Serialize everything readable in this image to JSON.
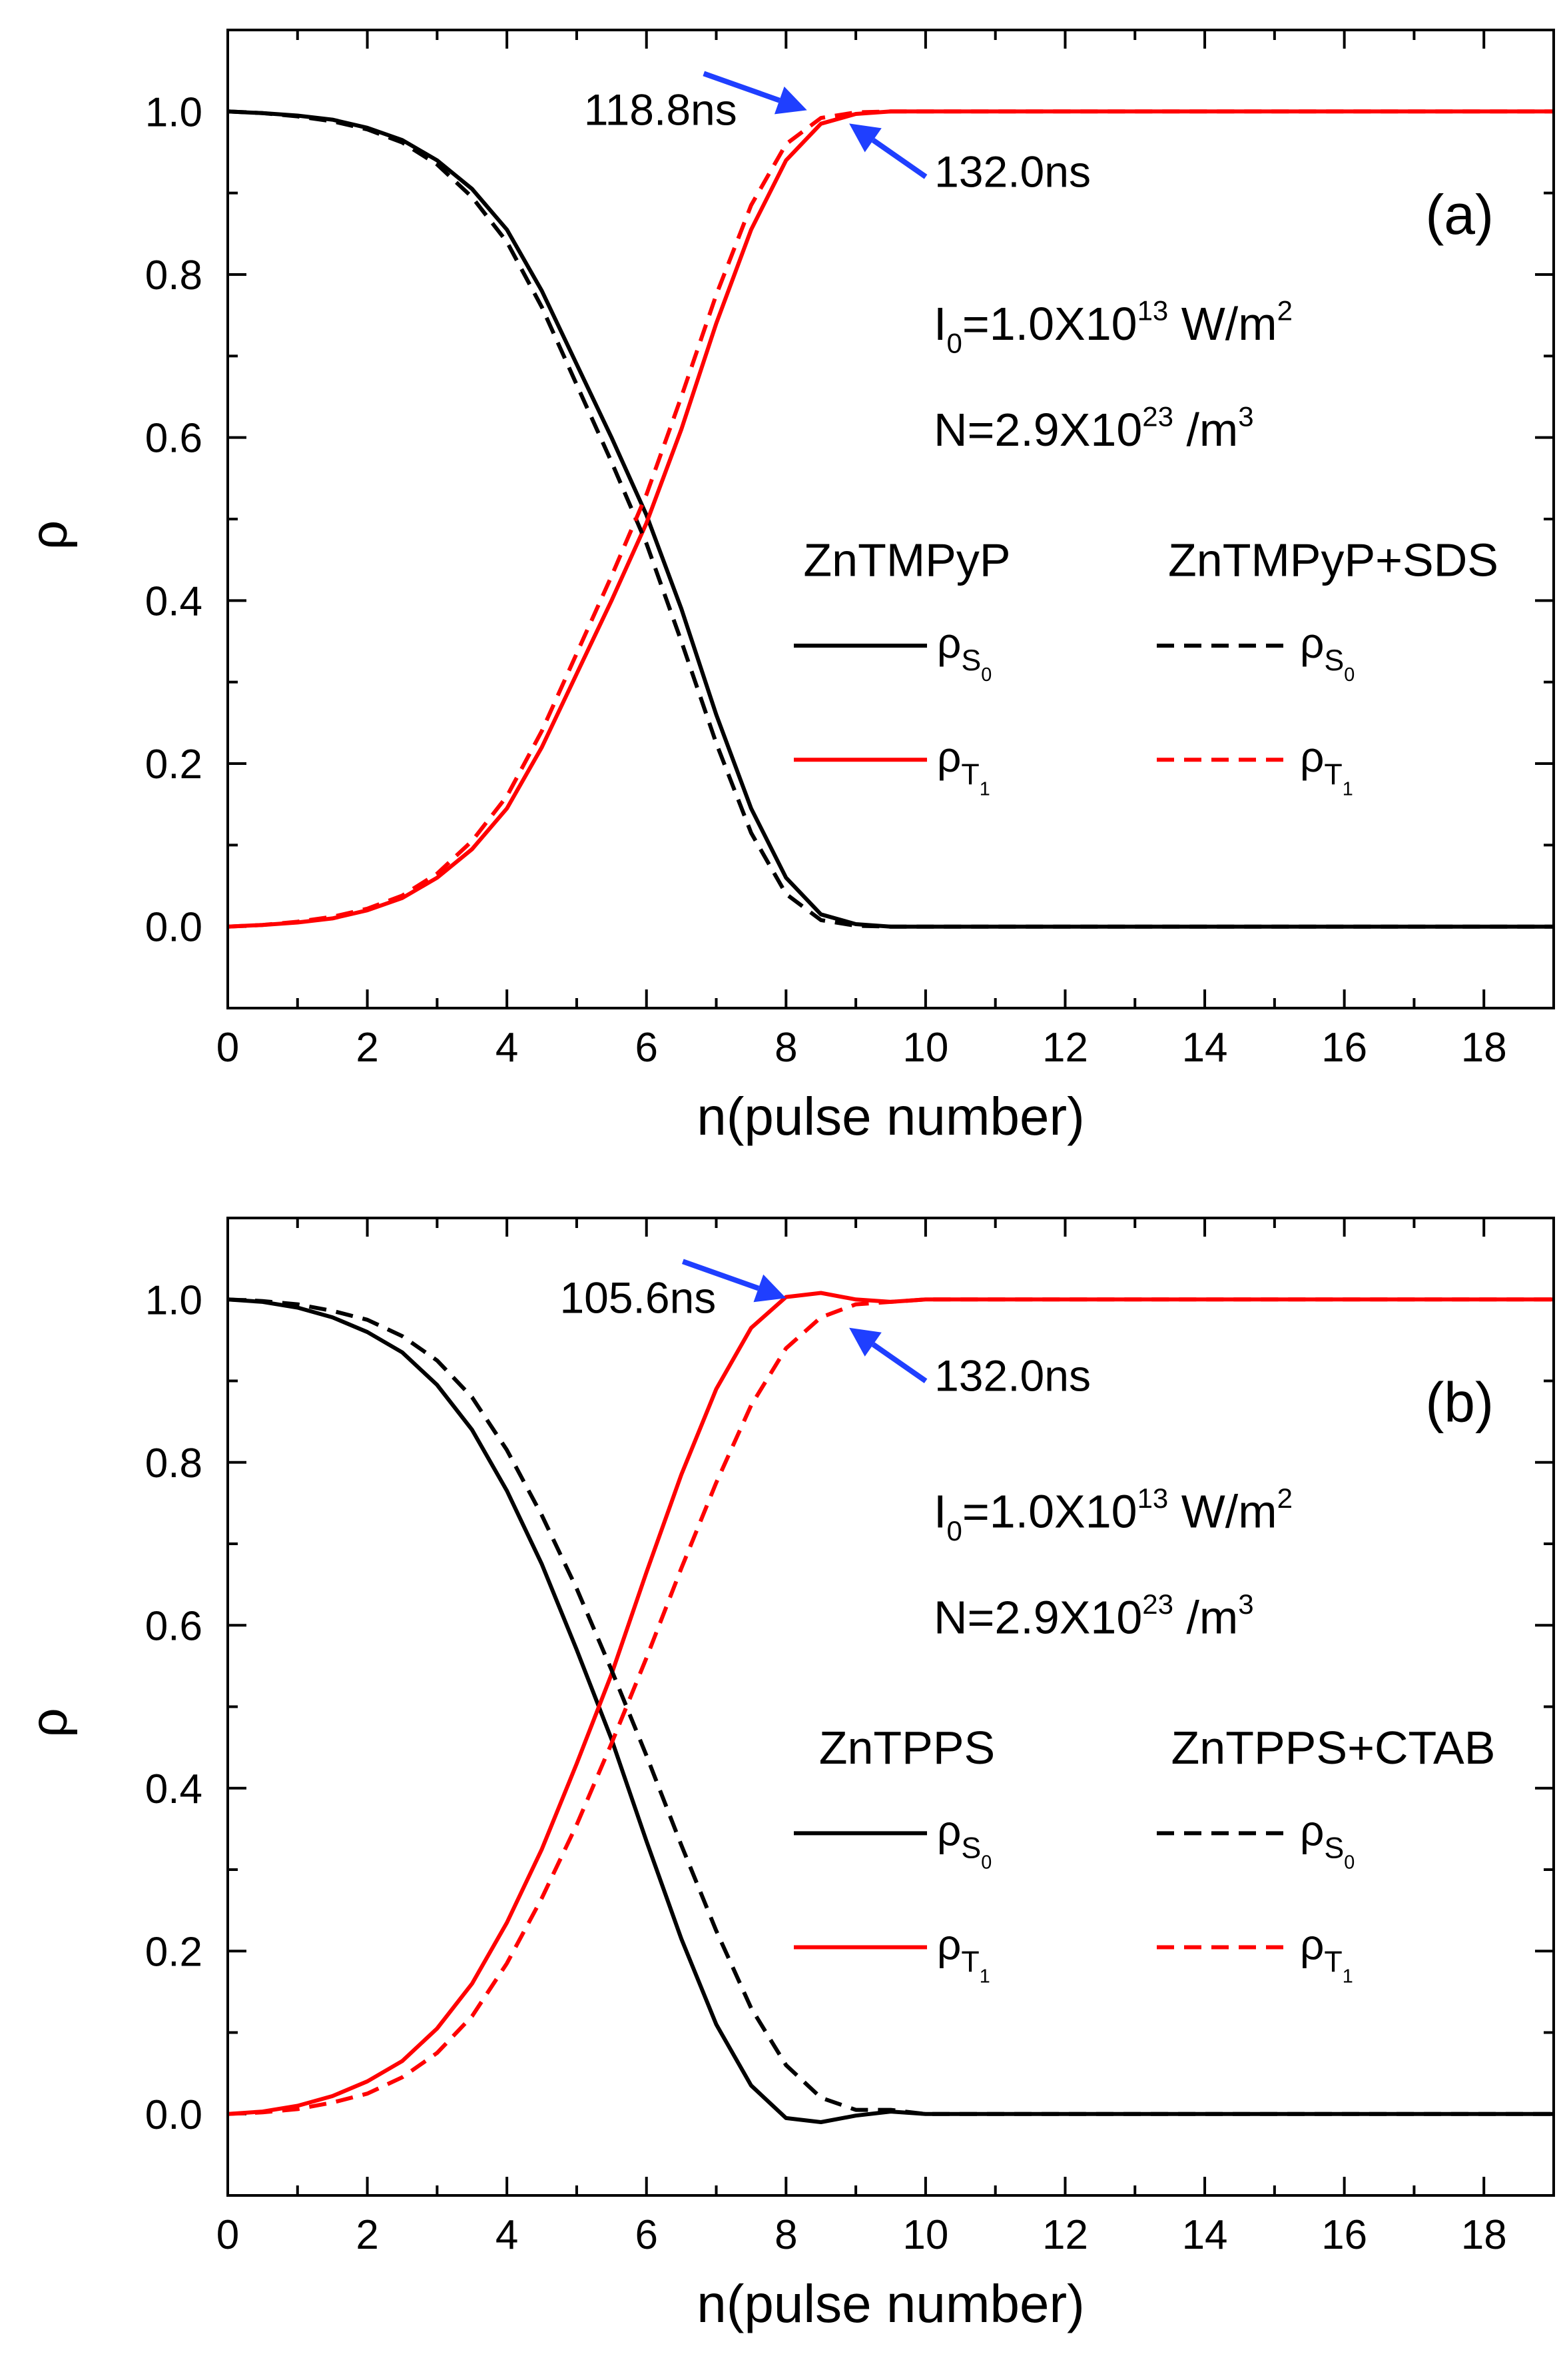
{
  "chart_data": [
    {
      "type": "line",
      "panel_label": "(a)",
      "xlabel": "n(pulse number)",
      "ylabel": "ρ",
      "xlim": [
        0,
        19
      ],
      "ylim": [
        -0.1,
        1.1
      ],
      "xticks": [
        0,
        2,
        4,
        6,
        8,
        10,
        12,
        14,
        16,
        18
      ],
      "xtick_labels": [
        "0",
        "2",
        "4",
        "6",
        "8",
        "10",
        "12",
        "14",
        "16",
        "18"
      ],
      "yticks": [
        0.0,
        0.2,
        0.4,
        0.6,
        0.8,
        1.0
      ],
      "ytick_labels": [
        "0.0",
        "0.2",
        "0.4",
        "0.6",
        "0.8",
        "1.0"
      ],
      "params": {
        "i_line": "I0=1.0X10^13 W/m^2",
        "n_line": "N=2.9X10^23 /m^3"
      },
      "legend": {
        "placement": "right-middle",
        "col1_header": "ZnTMPyP",
        "col2_header": "ZnTMPyP+SDS"
      },
      "annotations": [
        {
          "text": "118.8ns",
          "x": 8.3,
          "y": 1.0
        },
        {
          "text": "132.0ns",
          "x": 9.0,
          "y": 1.0
        }
      ],
      "series": [
        {
          "name": "ρS0",
          "group": "ZnTMPyP",
          "color": "#000000",
          "dashed": false,
          "x": [
            0,
            0.5,
            1,
            1.5,
            2,
            2.5,
            3,
            3.5,
            4,
            4.5,
            5,
            5.5,
            6,
            6.5,
            7,
            7.5,
            8,
            8.5,
            9,
            9.5,
            10,
            12,
            14,
            16,
            18,
            19
          ],
          "y": [
            1.0,
            0.998,
            0.995,
            0.99,
            0.98,
            0.965,
            0.94,
            0.905,
            0.855,
            0.78,
            0.69,
            0.6,
            0.505,
            0.39,
            0.26,
            0.145,
            0.06,
            0.015,
            0.003,
            0.0,
            0.0,
            0.0,
            0.0,
            0.0,
            0.0,
            0.0
          ]
        },
        {
          "name": "ρT1",
          "group": "ZnTMPyP",
          "color": "#ff0000",
          "dashed": false,
          "x": [
            0,
            0.5,
            1,
            1.5,
            2,
            2.5,
            3,
            3.5,
            4,
            4.5,
            5,
            5.5,
            6,
            6.5,
            7,
            7.5,
            8,
            8.5,
            9,
            9.5,
            10,
            12,
            14,
            16,
            18,
            19
          ],
          "y": [
            0.0,
            0.002,
            0.005,
            0.01,
            0.02,
            0.035,
            0.06,
            0.095,
            0.145,
            0.22,
            0.31,
            0.4,
            0.495,
            0.61,
            0.74,
            0.855,
            0.94,
            0.985,
            0.997,
            1.0,
            1.0,
            1.0,
            1.0,
            1.0,
            1.0,
            1.0
          ]
        },
        {
          "name": "ρS0",
          "group": "ZnTMPyP+SDS",
          "color": "#000000",
          "dashed": true,
          "x": [
            0,
            0.5,
            1,
            1.5,
            2,
            2.5,
            3,
            3.5,
            4,
            4.5,
            5,
            5.5,
            6,
            6.5,
            7,
            7.5,
            8,
            8.5,
            9,
            9.5,
            10,
            12,
            14,
            16,
            18,
            19
          ],
          "y": [
            1.0,
            0.998,
            0.994,
            0.988,
            0.978,
            0.962,
            0.935,
            0.895,
            0.84,
            0.76,
            0.665,
            0.57,
            0.47,
            0.35,
            0.225,
            0.115,
            0.04,
            0.008,
            0.001,
            0.0,
            0.0,
            0.0,
            0.0,
            0.0,
            0.0,
            0.0
          ]
        },
        {
          "name": "ρT1",
          "group": "ZnTMPyP+SDS",
          "color": "#ff0000",
          "dashed": true,
          "x": [
            0,
            0.5,
            1,
            1.5,
            2,
            2.5,
            3,
            3.5,
            4,
            4.5,
            5,
            5.5,
            6,
            6.5,
            7,
            7.5,
            8,
            8.5,
            9,
            9.5,
            10,
            12,
            14,
            16,
            18,
            19
          ],
          "y": [
            0.0,
            0.002,
            0.006,
            0.012,
            0.022,
            0.038,
            0.065,
            0.105,
            0.16,
            0.24,
            0.335,
            0.43,
            0.53,
            0.65,
            0.775,
            0.885,
            0.96,
            0.992,
            0.999,
            1.0,
            1.0,
            1.0,
            1.0,
            1.0,
            1.0,
            1.0
          ]
        }
      ]
    },
    {
      "type": "line",
      "panel_label": "(b)",
      "xlabel": "n(pulse number)",
      "ylabel": "ρ",
      "xlim": [
        0,
        19
      ],
      "ylim": [
        -0.1,
        1.1
      ],
      "xticks": [
        0,
        2,
        4,
        6,
        8,
        10,
        12,
        14,
        16,
        18
      ],
      "xtick_labels": [
        "0",
        "2",
        "4",
        "6",
        "8",
        "10",
        "12",
        "14",
        "16",
        "18"
      ],
      "yticks": [
        0.0,
        0.2,
        0.4,
        0.6,
        0.8,
        1.0
      ],
      "ytick_labels": [
        "0.0",
        "0.2",
        "0.4",
        "0.6",
        "0.8",
        "1.0"
      ],
      "params": {
        "i_line": "I0=1.0X10^13 W/m^2",
        "n_line": "N=2.9X10^23 /m^3"
      },
      "legend": {
        "placement": "right-middle",
        "col1_header": "ZnTPPS",
        "col2_header": "ZnTPPS+CTAB"
      },
      "annotations": [
        {
          "text": "105.6ns",
          "x": 8.0,
          "y": 1.0
        },
        {
          "text": "132.0ns",
          "x": 9.0,
          "y": 0.98
        }
      ],
      "series": [
        {
          "name": "ρS0",
          "group": "ZnTPPS",
          "color": "#000000",
          "dashed": false,
          "x": [
            0,
            0.5,
            1,
            1.5,
            2,
            2.5,
            3,
            3.5,
            4,
            4.5,
            5,
            5.5,
            6,
            6.5,
            7,
            7.5,
            8,
            8.5,
            9,
            9.5,
            10,
            12,
            14,
            16,
            18,
            19
          ],
          "y": [
            1.0,
            0.997,
            0.99,
            0.978,
            0.96,
            0.935,
            0.895,
            0.84,
            0.765,
            0.675,
            0.57,
            0.46,
            0.335,
            0.215,
            0.11,
            0.035,
            -0.005,
            -0.01,
            -0.002,
            0.003,
            0.0,
            0.0,
            0.0,
            0.0,
            0.0,
            0.0
          ]
        },
        {
          "name": "ρT1",
          "group": "ZnTPPS",
          "color": "#ff0000",
          "dashed": false,
          "x": [
            0,
            0.5,
            1,
            1.5,
            2,
            2.5,
            3,
            3.5,
            4,
            4.5,
            5,
            5.5,
            6,
            6.5,
            7,
            7.5,
            8,
            8.5,
            9,
            9.5,
            10,
            12,
            14,
            16,
            18,
            19
          ],
          "y": [
            0.0,
            0.003,
            0.01,
            0.022,
            0.04,
            0.065,
            0.105,
            0.16,
            0.235,
            0.325,
            0.43,
            0.54,
            0.665,
            0.785,
            0.89,
            0.965,
            1.003,
            1.008,
            1.0,
            0.997,
            1.0,
            1.0,
            1.0,
            1.0,
            1.0,
            1.0
          ]
        },
        {
          "name": "ρS0",
          "group": "ZnTPPS+CTAB",
          "color": "#000000",
          "dashed": true,
          "x": [
            0,
            0.5,
            1,
            1.5,
            2,
            2.5,
            3,
            3.5,
            4,
            4.5,
            5,
            5.5,
            6,
            6.5,
            7,
            7.5,
            8,
            8.5,
            9,
            9.5,
            10,
            12,
            14,
            16,
            18,
            19
          ],
          "y": [
            1.0,
            0.998,
            0.994,
            0.986,
            0.975,
            0.955,
            0.925,
            0.88,
            0.815,
            0.735,
            0.645,
            0.545,
            0.44,
            0.33,
            0.225,
            0.13,
            0.06,
            0.02,
            0.005,
            0.005,
            0.0,
            0.0,
            0.0,
            0.0,
            0.0,
            0.0
          ]
        },
        {
          "name": "ρT1",
          "group": "ZnTPPS+CTAB",
          "color": "#ff0000",
          "dashed": true,
          "x": [
            0,
            0.5,
            1,
            1.5,
            2,
            2.5,
            3,
            3.5,
            4,
            4.5,
            5,
            5.5,
            6,
            6.5,
            7,
            7.5,
            8,
            8.5,
            9,
            9.5,
            10,
            12,
            14,
            16,
            18,
            19
          ],
          "y": [
            0.0,
            0.002,
            0.006,
            0.014,
            0.025,
            0.045,
            0.075,
            0.12,
            0.185,
            0.265,
            0.355,
            0.455,
            0.56,
            0.67,
            0.775,
            0.87,
            0.94,
            0.978,
            0.994,
            0.997,
            1.0,
            1.0,
            1.0,
            1.0,
            1.0,
            1.0
          ]
        }
      ]
    }
  ]
}
